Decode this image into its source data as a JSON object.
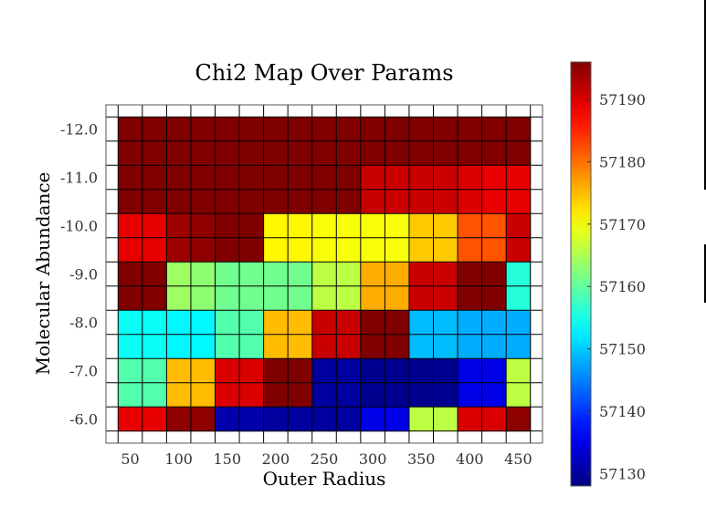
{
  "chart_data": {
    "type": "heatmap",
    "title": "Chi2 Map Over Params",
    "xlabel": "Outer Radius",
    "ylabel": "Molecular Abundance",
    "x": [
      50,
      75,
      100,
      125,
      150,
      175,
      200,
      225,
      250,
      275,
      300,
      325,
      350,
      375,
      400,
      425,
      450
    ],
    "y": [
      -12.0,
      -11.5,
      -11.0,
      -10.5,
      -10.0,
      -9.5,
      -9.0,
      -8.5,
      -8.0,
      -7.5,
      -7.0,
      -6.5,
      -6.0
    ],
    "x_ticks": [
      "50",
      "100",
      "150",
      "200",
      "250",
      "300",
      "350",
      "400",
      "450"
    ],
    "y_ticks": [
      "-12.0",
      "-11.0",
      "-10.0",
      "-9.0",
      "-8.0",
      "-7.0",
      "-6.0"
    ],
    "xlim": [
      25,
      475
    ],
    "ylim": [
      -12.5,
      -5.5
    ],
    "y_axis_inverted": true,
    "grid": true,
    "colormap": "jet",
    "colorbar": {
      "range": [
        57128,
        57196
      ],
      "ticks": [
        "57190",
        "57180",
        "57170",
        "57160",
        "57150",
        "57140",
        "57130"
      ]
    },
    "z": [
      [
        57196,
        57196,
        57196,
        57196,
        57196,
        57196,
        57196,
        57196,
        57196,
        57196,
        57196,
        57196,
        57196,
        57196,
        57196,
        57196,
        57196
      ],
      [
        57196,
        57196,
        57196,
        57196,
        57196,
        57196,
        57196,
        57196,
        57196,
        57196,
        57196,
        57196,
        57196,
        57196,
        57196,
        57196,
        57196
      ],
      [
        57196,
        57196,
        57196,
        57196,
        57196,
        57196,
        57196,
        57196,
        57196,
        57196,
        57191,
        57191,
        57191,
        57191,
        57190,
        57189,
        57189
      ],
      [
        57196,
        57196,
        57196,
        57196,
        57196,
        57196,
        57196,
        57196,
        57196,
        57196,
        57191,
        57191,
        57191,
        57191,
        57190,
        57189,
        57189
      ],
      [
        57189,
        57189,
        57194,
        57195,
        57196,
        57196,
        57171,
        57171,
        57170,
        57170,
        57170,
        57170,
        57174,
        57174,
        57182,
        57182,
        57191
      ],
      [
        57189,
        57189,
        57194,
        57195,
        57196,
        57196,
        57171,
        57171,
        57170,
        57170,
        57170,
        57170,
        57174,
        57174,
        57182,
        57182,
        57191
      ],
      [
        57196,
        57196,
        57164,
        57163,
        57161,
        57161,
        57161,
        57161,
        57166,
        57166,
        57176,
        57176,
        57191,
        57191,
        57196,
        57196,
        57156
      ],
      [
        57196,
        57196,
        57164,
        57163,
        57161,
        57161,
        57161,
        57161,
        57166,
        57166,
        57176,
        57176,
        57191,
        57191,
        57196,
        57196,
        57156
      ],
      [
        57154,
        57154,
        57153,
        57153,
        57159,
        57159,
        57175,
        57175,
        57191,
        57191,
        57196,
        57196,
        57149,
        57149,
        57148,
        57148,
        57148
      ],
      [
        57154,
        57154,
        57153,
        57153,
        57159,
        57159,
        57175,
        57175,
        57191,
        57191,
        57196,
        57196,
        57149,
        57149,
        57148,
        57148,
        57148
      ],
      [
        57159,
        57159,
        57175,
        57175,
        57190,
        57190,
        57196,
        57196,
        57130,
        57130,
        57129,
        57129,
        57129,
        57129,
        57135,
        57135,
        57166
      ],
      [
        57159,
        57159,
        57175,
        57175,
        57190,
        57190,
        57196,
        57196,
        57130,
        57130,
        57129,
        57129,
        57129,
        57129,
        57135,
        57135,
        57166
      ],
      [
        57189,
        57189,
        57195,
        57195,
        57131,
        57131,
        57130,
        57130,
        57130,
        57130,
        57135,
        57135,
        57166,
        57166,
        57190,
        57190,
        57195
      ]
    ]
  }
}
